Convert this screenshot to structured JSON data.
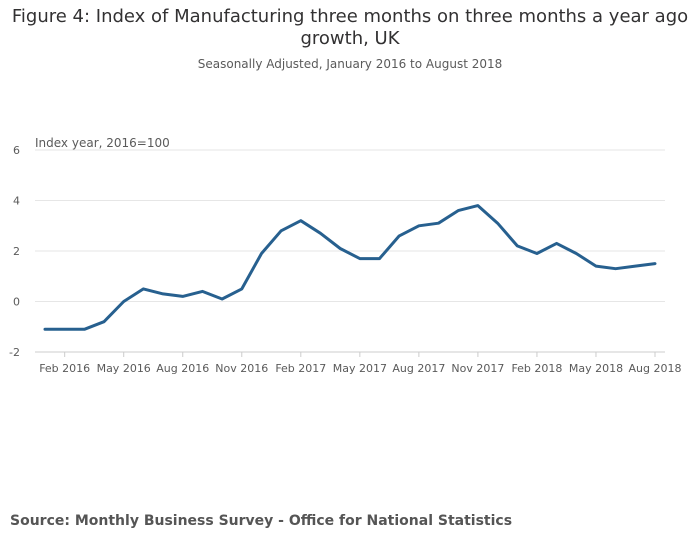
{
  "colors": {
    "line": "#27608f",
    "grid": "#e6e6e6",
    "axis": "#cccccc"
  },
  "chart_data": {
    "type": "line",
    "title_line1": "Figure 4: Index of Manufacturing three months on three months a year ago",
    "title_line2": "growth, UK",
    "subtitle": "Seasonally Adjusted, January 2016 to August 2018",
    "ylabel": "Index year, 2016=100",
    "xlabel": "",
    "ylim": [
      -2,
      6
    ],
    "yticks": [
      -2,
      0,
      2,
      4,
      6
    ],
    "x": [
      "Jan 2016",
      "Feb 2016",
      "Mar 2016",
      "Apr 2016",
      "May 2016",
      "Jun 2016",
      "Jul 2016",
      "Aug 2016",
      "Sep 2016",
      "Oct 2016",
      "Nov 2016",
      "Dec 2016",
      "Jan 2017",
      "Feb 2017",
      "Mar 2017",
      "Apr 2017",
      "May 2017",
      "Jun 2017",
      "Jul 2017",
      "Aug 2017",
      "Sep 2017",
      "Oct 2017",
      "Nov 2017",
      "Dec 2017",
      "Jan 2018",
      "Feb 2018",
      "Mar 2018",
      "Apr 2018",
      "May 2018",
      "Jun 2018",
      "Jul 2018",
      "Aug 2018"
    ],
    "xtick_labels": [
      "Feb 2016",
      "May 2016",
      "Aug 2016",
      "Nov 2016",
      "Feb 2017",
      "May 2017",
      "Aug 2017",
      "Nov 2017",
      "Feb 2018",
      "May 2018",
      "Aug 2018"
    ],
    "xtick_indices": [
      1,
      4,
      7,
      10,
      13,
      16,
      19,
      22,
      25,
      28,
      31
    ],
    "series": [
      {
        "name": "Index of Manufacturing",
        "values": [
          -1.1,
          -1.1,
          -1.1,
          -0.8,
          0.0,
          0.5,
          0.3,
          0.2,
          0.4,
          0.1,
          0.5,
          1.9,
          2.8,
          3.2,
          2.7,
          2.1,
          1.7,
          1.7,
          2.6,
          3.0,
          3.1,
          3.6,
          3.8,
          3.1,
          2.2,
          1.9,
          2.3,
          1.9,
          1.4,
          1.3,
          1.4,
          1.5
        ]
      }
    ]
  },
  "source": "Source: Monthly Business Survey - Office for National Statistics"
}
